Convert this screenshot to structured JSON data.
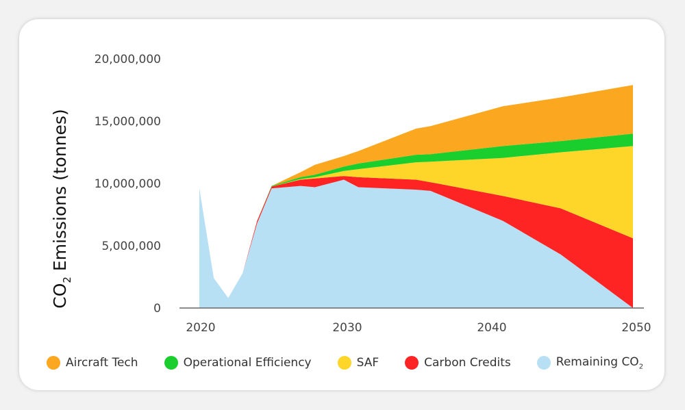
{
  "chart_data": {
    "type": "area",
    "stacked": true,
    "title": "",
    "xlabel": "",
    "ylabel": "CO2 Emissions (tonnes)",
    "ylabel_parts": {
      "main": "CO",
      "sub": "2",
      "rest": " Emissions (tonnes)"
    },
    "xlim": [
      2020,
      2050
    ],
    "ylim": [
      0,
      20000000
    ],
    "x_ticks": [
      2020,
      2030,
      2040,
      2050
    ],
    "x_tick_labels": [
      "2020",
      "2030",
      "2040",
      "2050"
    ],
    "y_ticks": [
      0,
      5000000,
      10000000,
      15000000,
      20000000
    ],
    "y_tick_labels": [
      "0",
      "5,000,000",
      "10,000,000",
      "15,000,000",
      "20,000,000"
    ],
    "grid": false,
    "legend_position": "bottom",
    "x": [
      2020,
      2021,
      2022,
      2023,
      2024,
      2025,
      2027,
      2028,
      2030,
      2031,
      2035,
      2036,
      2041,
      2045,
      2050
    ],
    "series": [
      {
        "name": "Remaining CO2",
        "color": "#B8E0F5",
        "values": [
          9600000,
          2400000,
          800000,
          2800000,
          6800000,
          9600000,
          9800000,
          9700000,
          10300000,
          9700000,
          9500000,
          9400000,
          7000000,
          4300000,
          0
        ]
      },
      {
        "name": "Carbon Credits",
        "color": "#FE2424",
        "values": [
          0,
          0,
          0,
          0,
          200000,
          150000,
          500000,
          700000,
          300000,
          800000,
          800000,
          700000,
          2000000,
          3700000,
          5600000
        ]
      },
      {
        "name": "SAF",
        "color": "#FDD629",
        "values": [
          0,
          0,
          0,
          0,
          0,
          0,
          50000,
          100000,
          400000,
          650000,
          1400000,
          1650000,
          3050000,
          4500000,
          7400000
        ]
      },
      {
        "name": "Operational Efficiency",
        "color": "#1ACE2E",
        "values": [
          0,
          0,
          0,
          0,
          0,
          50000,
          150000,
          200000,
          350000,
          450000,
          600000,
          600000,
          950000,
          900000,
          1000000
        ]
      },
      {
        "name": "Aircraft Tech",
        "color": "#FBA71F",
        "values": [
          0,
          0,
          0,
          0,
          0,
          0,
          400000,
          800000,
          850000,
          1000000,
          2100000,
          2250000,
          3200000,
          3500000,
          3900000
        ]
      }
    ]
  },
  "legend": [
    {
      "label": "Aircraft Tech",
      "color": "#FBA71F"
    },
    {
      "label": "Operational Efficiency",
      "color": "#1ACE2E"
    },
    {
      "label": "SAF",
      "color": "#FDD629"
    },
    {
      "label": "Carbon Credits",
      "color": "#FE2424"
    },
    {
      "label": "Remaining CO",
      "sub": "2",
      "color": "#B8E0F5"
    }
  ]
}
